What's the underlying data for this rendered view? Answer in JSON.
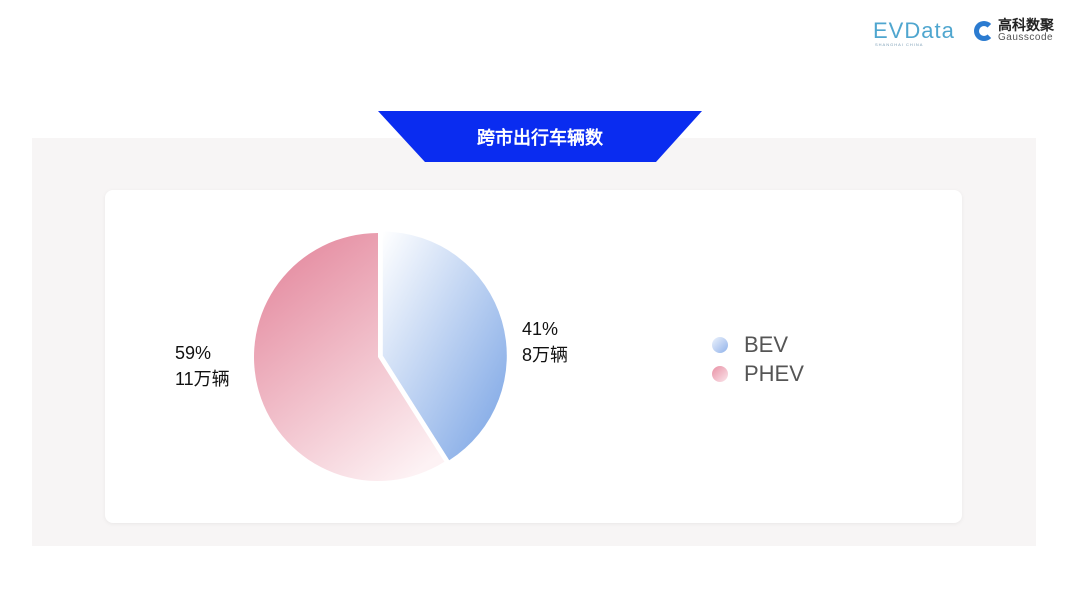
{
  "logos": {
    "evdata": "EVData",
    "evdata_sub": "SHANGHAI CHINA",
    "gauss_cn": "高科数聚",
    "gauss_en": "Gausscode"
  },
  "chart_data": {
    "type": "pie",
    "title": "跨市出行车辆数",
    "slices": [
      {
        "name": "BEV",
        "percent": 41,
        "value_label": "8万辆",
        "percent_label": "41%",
        "colors": [
          "#ffffff",
          "#77a2e4"
        ]
      },
      {
        "name": "PHEV",
        "percent": 59,
        "value_label": "11万辆",
        "percent_label": "59%",
        "colors": [
          "#e4899e",
          "#fdf2f4"
        ]
      }
    ],
    "legend": "right"
  }
}
